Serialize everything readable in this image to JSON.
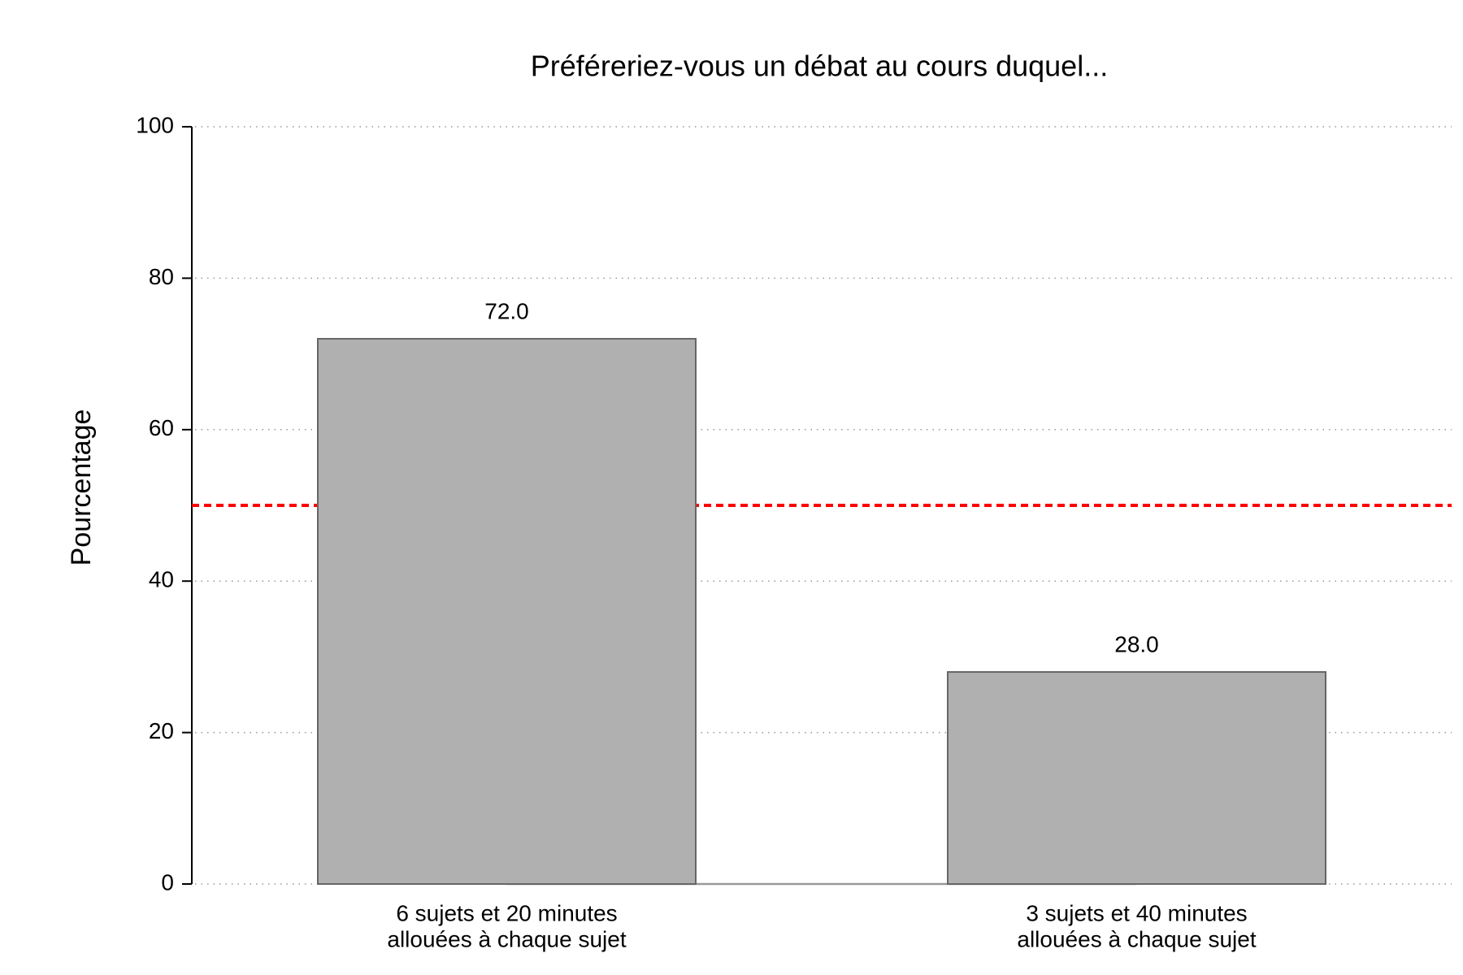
{
  "chart_data": {
    "type": "bar",
    "title": "Préféreriez-vous un débat au cours duquel...",
    "y_label": "Pourcentage",
    "categories": [
      [
        "6 sujets et 20 minutes",
        "allouées à chaque sujet"
      ],
      [
        "3 sujets et 40 minutes",
        "allouées à chaque sujet"
      ]
    ],
    "values": [
      72,
      28
    ],
    "value_labels": [
      "72.0",
      "28.0"
    ],
    "color": "#b0b0b0",
    "ylim": [
      0,
      100
    ],
    "yticks": [
      0,
      20,
      40,
      60,
      80,
      100
    ],
    "grid": true,
    "reference_line": {
      "value": 50,
      "color": "#ff0000"
    }
  }
}
